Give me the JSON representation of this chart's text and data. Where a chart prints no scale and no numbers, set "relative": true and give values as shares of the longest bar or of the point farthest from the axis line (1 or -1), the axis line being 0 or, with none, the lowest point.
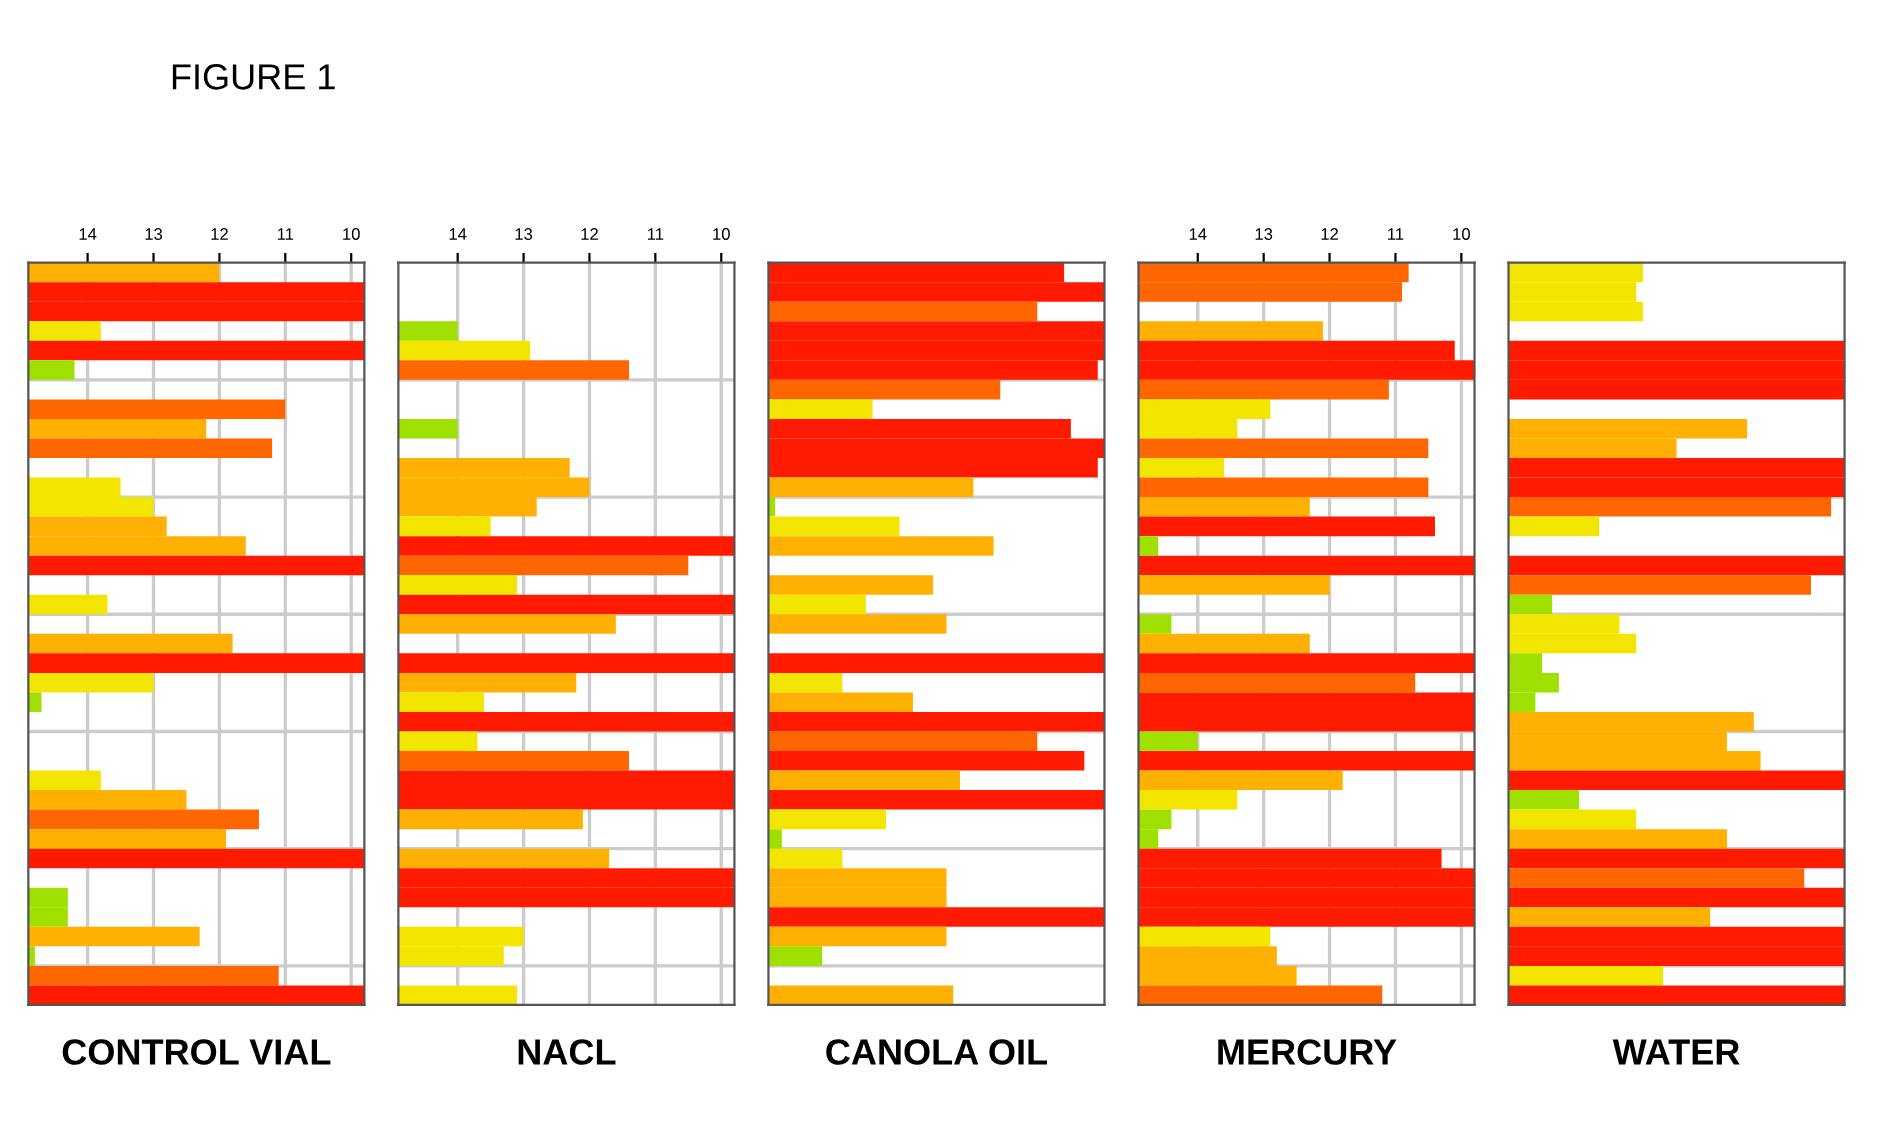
{
  "chart_data": [
    {
      "type": "bar",
      "orientation": "horizontal",
      "title": "FIGURE 1",
      "xlabel": "CONTROL VIAL",
      "xlim": [
        14.9,
        9.8
      ],
      "xticks": [
        14,
        13,
        12,
        11,
        10
      ],
      "grid": true,
      "categories": [
        null,
        null,
        null,
        null,
        null,
        null,
        null,
        null,
        null,
        null,
        null,
        null,
        null,
        null,
        null,
        null,
        null,
        null,
        null,
        null,
        null,
        null,
        null,
        null,
        null,
        null,
        null,
        null,
        null,
        null,
        null,
        null,
        null,
        null,
        null,
        null,
        null,
        null
      ],
      "base": [
        14.9,
        14.9,
        14.9,
        14.9,
        14.9,
        14.9,
        null,
        14.9,
        14.9,
        14.9,
        null,
        14.9,
        14.9,
        14.9,
        14.9,
        14.9,
        null,
        14.9,
        null,
        14.9,
        14.9,
        14.9,
        14.9,
        null,
        null,
        null,
        14.9,
        14.9,
        14.9,
        14.9,
        14.9,
        null,
        14.9,
        14.9,
        14.9,
        14.9,
        14.9,
        14.9
      ],
      "values": [
        -2.9,
        -5.1,
        -5.1,
        -1.1,
        -5.1,
        -0.7,
        null,
        -3.9,
        -2.7,
        -3.7,
        null,
        -1.4,
        -1.9,
        -2.1,
        -3.3,
        -5.1,
        null,
        -1.2,
        null,
        -3.1,
        -5.1,
        -1.9,
        -0.2,
        null,
        null,
        null,
        -1.1,
        -2.4,
        -3.5,
        -3.0,
        -5.1,
        null,
        -0.6,
        -0.6,
        -2.6,
        -0.1,
        -3.8,
        -5.1
      ],
      "colors": [
        "#ffb000",
        "#ff1a00",
        "#ff1a00",
        "#f2e600",
        "#ff1a00",
        "#9fe000",
        null,
        "#ff6600",
        "#ffb000",
        "#ff6600",
        null,
        "#f2e600",
        "#f2e600",
        "#ffb000",
        "#ffb000",
        "#ff1a00",
        null,
        "#f2e600",
        null,
        "#ffb000",
        "#ff1a00",
        "#f2e600",
        "#9fe000",
        null,
        null,
        null,
        "#f2e600",
        "#ffb000",
        "#ff6600",
        "#ffb000",
        "#ff1a00",
        null,
        "#9fe000",
        "#9fe000",
        "#ffb000",
        "#9fe000",
        "#ff6600",
        "#ff1a00"
      ]
    },
    {
      "type": "bar",
      "orientation": "horizontal",
      "xlabel": "NACL",
      "xlim": [
        14.9,
        9.8
      ],
      "xticks": [
        14,
        13,
        12,
        11,
        10
      ],
      "grid": true,
      "categories": [
        null,
        null,
        null,
        null,
        null,
        null,
        null,
        null,
        null,
        null,
        null,
        null,
        null,
        null,
        null,
        null,
        null,
        null,
        null,
        null,
        null,
        null,
        null,
        null,
        null,
        null,
        null,
        null,
        null,
        null,
        null,
        null,
        null,
        null,
        null,
        null,
        null,
        null
      ],
      "base": [
        null,
        null,
        null,
        14.9,
        14.9,
        14.9,
        null,
        null,
        14.9,
        null,
        14.9,
        14.9,
        14.9,
        14.9,
        14.9,
        14.9,
        14.9,
        14.9,
        14.9,
        null,
        14.9,
        14.9,
        14.9,
        14.9,
        14.9,
        14.9,
        14.9,
        14.9,
        14.9,
        null,
        14.9,
        14.9,
        14.9,
        null,
        14.9,
        14.9,
        null,
        14.9
      ],
      "values": [
        null,
        null,
        null,
        -0.9,
        -2.0,
        -3.5,
        null,
        null,
        -0.9,
        null,
        -2.6,
        -2.9,
        -2.1,
        -1.4,
        -5.1,
        -4.4,
        -1.8,
        -5.1,
        -3.3,
        null,
        -5.1,
        -2.7,
        -1.3,
        -5.1,
        -1.2,
        -3.5,
        -5.1,
        -5.1,
        -2.8,
        null,
        -3.2,
        -5.1,
        -5.1,
        null,
        -1.9,
        -1.6,
        null,
        -1.8
      ],
      "colors": [
        null,
        null,
        null,
        "#9fe000",
        "#f2e600",
        "#ff6600",
        null,
        null,
        "#9fe000",
        null,
        "#ffb000",
        "#ffb000",
        "#ffb000",
        "#f2e600",
        "#ff1a00",
        "#ff6600",
        "#f2e600",
        "#ff1a00",
        "#ffb000",
        null,
        "#ff1a00",
        "#ffb000",
        "#f2e600",
        "#ff1a00",
        "#f2e600",
        "#ff6600",
        "#ff1a00",
        "#ff1a00",
        "#ffb000",
        null,
        "#ffb000",
        "#ff1a00",
        "#ff1a00",
        null,
        "#f2e600",
        "#f2e600",
        null,
        "#f2e600"
      ]
    },
    {
      "type": "bar",
      "orientation": "horizontal",
      "xlabel": "CANOLA OIL",
      "relative": true,
      "grid": "y",
      "categories": [
        null,
        null,
        null,
        null,
        null,
        null,
        null,
        null,
        null,
        null,
        null,
        null,
        null,
        null,
        null,
        null,
        null,
        null,
        null,
        null,
        null,
        null,
        null,
        null,
        null,
        null,
        null,
        null,
        null,
        null,
        null,
        null,
        null,
        null,
        null,
        null,
        null,
        null
      ],
      "values": [
        0.88,
        1,
        0.8,
        1,
        1,
        0.98,
        0.69,
        0.31,
        0.9,
        1,
        0.98,
        0.61,
        0.02,
        0.39,
        0.67,
        null,
        0.49,
        0.29,
        0.53,
        null,
        1,
        0.22,
        0.43,
        1,
        0.8,
        0.94,
        0.57,
        1,
        0.35,
        0.04,
        0.22,
        0.53,
        0.53,
        1,
        0.53,
        0.16,
        null,
        0.55
      ],
      "colors": [
        "#ff1a00",
        "#ff1a00",
        "#ff6600",
        "#ff1a00",
        "#ff1a00",
        "#ff1a00",
        "#ff6600",
        "#f2e600",
        "#ff1a00",
        "#ff1a00",
        "#ff1a00",
        "#ffb000",
        "#9fe000",
        "#f2e600",
        "#ffb000",
        null,
        "#ffb000",
        "#f2e600",
        "#ffb000",
        null,
        "#ff1a00",
        "#f2e600",
        "#ffb000",
        "#ff1a00",
        "#ff6600",
        "#ff1a00",
        "#ffb000",
        "#ff1a00",
        "#f2e600",
        "#9fe000",
        "#f2e600",
        "#ffb000",
        "#ffb000",
        "#ff1a00",
        "#ffb000",
        "#9fe000",
        null,
        "#ffb000"
      ]
    },
    {
      "type": "bar",
      "orientation": "horizontal",
      "xlabel": "MERCURY",
      "xlim": [
        14.9,
        9.8
      ],
      "xticks": [
        14,
        13,
        12,
        11,
        10
      ],
      "grid": true,
      "categories": [
        null,
        null,
        null,
        null,
        null,
        null,
        null,
        null,
        null,
        null,
        null,
        null,
        null,
        null,
        null,
        null,
        null,
        null,
        null,
        null,
        null,
        null,
        null,
        null,
        null,
        null,
        null,
        null,
        null,
        null,
        null,
        null,
        null,
        null,
        null,
        null,
        null,
        null
      ],
      "base": [
        14.9,
        14.9,
        null,
        14.9,
        14.9,
        14.9,
        14.9,
        14.9,
        14.9,
        14.9,
        14.9,
        14.9,
        14.9,
        14.9,
        14.9,
        14.9,
        14.9,
        null,
        14.9,
        14.9,
        14.9,
        14.9,
        14.9,
        14.9,
        14.9,
        14.9,
        14.9,
        14.9,
        14.9,
        14.9,
        14.9,
        14.9,
        14.9,
        14.9,
        14.9,
        14.9,
        14.9,
        14.9
      ],
      "values": [
        -4.1,
        -4.0,
        null,
        -2.8,
        -4.8,
        -5.1,
        -3.8,
        -2.0,
        -1.5,
        -4.4,
        -1.3,
        -4.4,
        -2.6,
        -4.5,
        -0.3,
        -5.1,
        -2.9,
        null,
        -0.5,
        -2.6,
        -5.1,
        -4.2,
        -5.1,
        -5.1,
        -0.9,
        -5.1,
        -3.1,
        -1.5,
        -0.5,
        -0.3,
        -4.6,
        -5.1,
        -5.1,
        -5.1,
        -2.0,
        -2.1,
        -2.4,
        -3.7
      ],
      "colors": [
        "#ff6600",
        "#ff6600",
        null,
        "#ffb000",
        "#ff1a00",
        "#ff1a00",
        "#ff6600",
        "#f2e600",
        "#f2e600",
        "#ff6600",
        "#f2e600",
        "#ff6600",
        "#ffb000",
        "#ff1a00",
        "#9fe000",
        "#ff1a00",
        "#ffb000",
        null,
        "#9fe000",
        "#ffb000",
        "#ff1a00",
        "#ff6600",
        "#ff1a00",
        "#ff1a00",
        "#9fe000",
        "#ff1a00",
        "#ffb000",
        "#f2e600",
        "#9fe000",
        "#9fe000",
        "#ff1a00",
        "#ff1a00",
        "#ff1a00",
        "#ff1a00",
        "#f2e600",
        "#ffb000",
        "#ffb000",
        "#ff6600"
      ]
    },
    {
      "type": "bar",
      "orientation": "horizontal",
      "xlabel": "WATER",
      "relative": true,
      "grid": "y",
      "categories": [
        null,
        null,
        null,
        null,
        null,
        null,
        null,
        null,
        null,
        null,
        null,
        null,
        null,
        null,
        null,
        null,
        null,
        null,
        null,
        null,
        null,
        null,
        null,
        null,
        null,
        null,
        null,
        null,
        null,
        null,
        null,
        null,
        null,
        null,
        null,
        null,
        null,
        null
      ],
      "values": [
        0.4,
        0.38,
        0.4,
        null,
        1,
        1,
        1,
        null,
        0.71,
        0.5,
        1,
        1,
        0.96,
        0.27,
        null,
        1,
        0.9,
        0.13,
        0.33,
        0.38,
        0.1,
        0.15,
        0.08,
        0.73,
        0.65,
        0.75,
        1,
        0.21,
        0.38,
        0.65,
        1,
        0.88,
        1,
        0.6,
        1,
        1,
        0.46,
        1
      ],
      "colors": [
        "#f2e600",
        "#f2e600",
        "#f2e600",
        null,
        "#ff1a00",
        "#ff1a00",
        "#ff1a00",
        null,
        "#ffb000",
        "#ffb000",
        "#ff1a00",
        "#ff1a00",
        "#ff6600",
        "#f2e600",
        null,
        "#ff1a00",
        "#ff6600",
        "#9fe000",
        "#f2e600",
        "#f2e600",
        "#9fe000",
        "#9fe000",
        "#9fe000",
        "#ffb000",
        "#ffb000",
        "#ffb000",
        "#ff1a00",
        "#9fe000",
        "#f2e600",
        "#ffb000",
        "#ff1a00",
        "#ff6600",
        "#ff1a00",
        "#ffb000",
        "#ff1a00",
        "#ff1a00",
        "#f2e600",
        "#ff1a00"
      ]
    }
  ]
}
